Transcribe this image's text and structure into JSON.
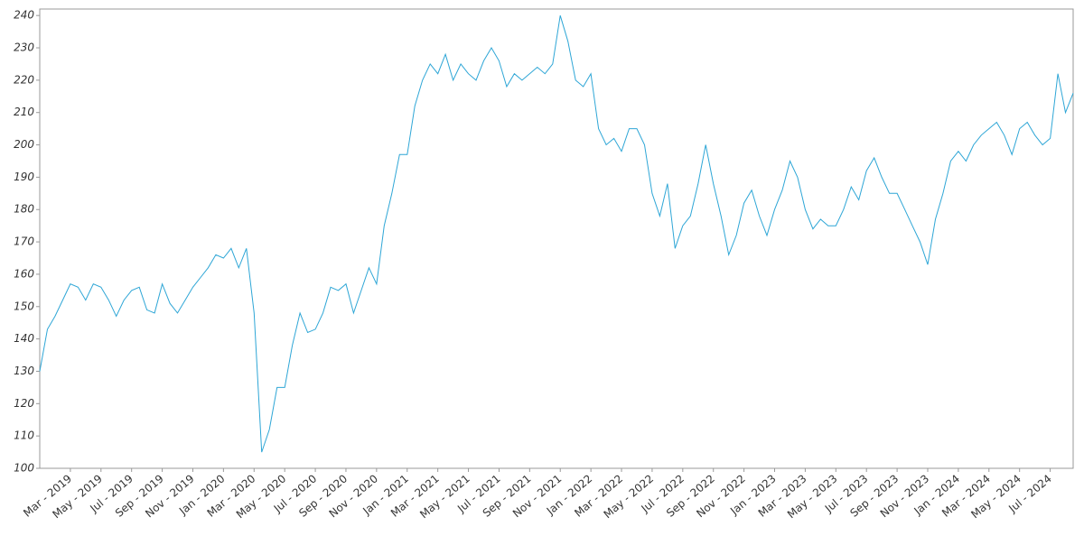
{
  "chart_data": {
    "type": "line",
    "categories": [
      null,
      null,
      null,
      null,
      "Mar - 2019",
      null,
      null,
      null,
      "May - 2019",
      null,
      null,
      null,
      "Jul - 2019",
      null,
      null,
      null,
      "Sep - 2019",
      null,
      null,
      null,
      "Nov - 2019",
      null,
      null,
      null,
      "Jan - 2020",
      null,
      null,
      null,
      "Mar - 2020",
      null,
      null,
      null,
      "May - 2020",
      null,
      null,
      null,
      "Jul - 2020",
      null,
      null,
      null,
      "Sep - 2020",
      null,
      null,
      null,
      "Nov - 2020",
      null,
      null,
      null,
      "Jan - 2021",
      null,
      null,
      null,
      "Mar - 2021",
      null,
      null,
      null,
      "May - 2021",
      null,
      null,
      null,
      "Jul - 2021",
      null,
      null,
      null,
      "Sep - 2021",
      null,
      null,
      null,
      "Nov - 2021",
      null,
      null,
      null,
      "Jan - 2022",
      null,
      null,
      null,
      "Mar - 2022",
      null,
      null,
      null,
      "May - 2022",
      null,
      null,
      null,
      "Jul - 2022",
      null,
      null,
      null,
      "Sep - 2022",
      null,
      null,
      null,
      "Nov - 2022",
      null,
      null,
      null,
      "Jan - 2023",
      null,
      null,
      null,
      "Mar - 2023",
      null,
      null,
      null,
      "May - 2023",
      null,
      null,
      null,
      "Jul - 2023",
      null,
      null,
      null,
      "Sep - 2023",
      null,
      null,
      null,
      "Nov - 2023",
      null,
      null,
      null,
      "Jan - 2024",
      null,
      null,
      null,
      "Mar - 2024",
      null,
      null,
      null,
      "May - 2024",
      null,
      null,
      null,
      "Jul - 2024",
      null,
      null,
      null
    ],
    "series": [
      {
        "color": "#2ea6d6",
        "values": [
          130,
          143,
          147,
          152,
          157,
          156,
          152,
          157,
          156,
          152,
          147,
          152,
          155,
          156,
          149,
          148,
          157,
          151,
          148,
          152,
          156,
          159,
          162,
          166,
          165,
          168,
          162,
          168,
          148,
          105,
          112,
          125,
          125,
          138,
          148,
          142,
          143,
          148,
          156,
          155,
          157,
          148,
          155,
          162,
          157,
          175,
          185,
          197,
          197,
          212,
          220,
          225,
          222,
          228,
          220,
          225,
          222,
          220,
          226,
          230,
          226,
          218,
          222,
          220,
          222,
          224,
          222,
          225,
          240,
          232,
          220,
          218,
          222,
          205,
          200,
          202,
          198,
          205,
          205,
          200,
          185,
          178,
          188,
          168,
          175,
          178,
          188,
          200,
          188,
          178,
          166,
          172,
          182,
          186,
          178,
          172,
          180,
          186,
          195,
          190,
          180,
          174,
          177,
          175,
          175,
          180,
          187,
          183,
          192,
          196,
          190,
          185,
          185,
          180,
          175,
          170,
          163,
          177,
          185,
          195,
          198,
          195,
          200,
          203,
          205,
          207,
          203,
          197,
          205,
          207,
          203,
          200,
          202,
          222,
          210,
          216
        ]
      }
    ],
    "ylim": [
      100,
      242
    ],
    "yticks": [
      100,
      110,
      120,
      130,
      140,
      150,
      160,
      170,
      180,
      190,
      200,
      210,
      220,
      230,
      240
    ],
    "grid": false
  }
}
